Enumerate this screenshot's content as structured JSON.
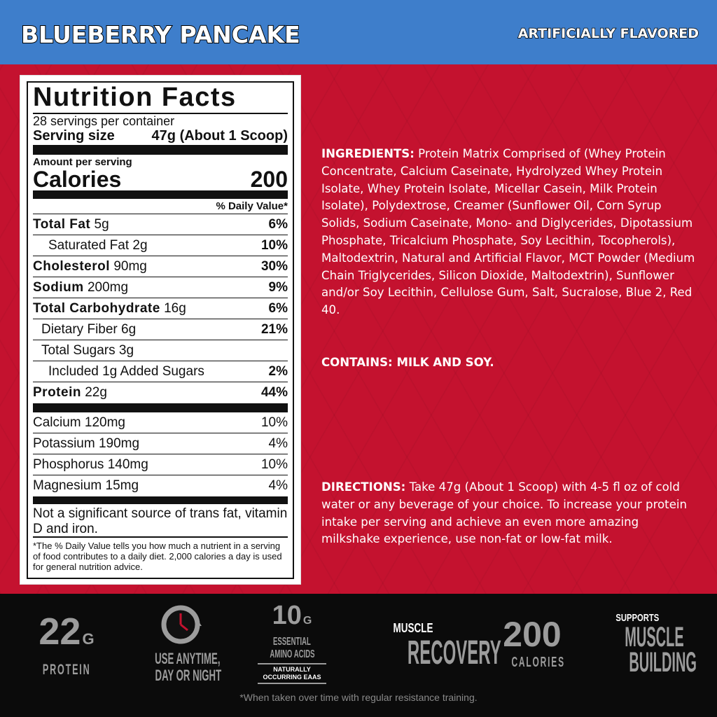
{
  "header": {
    "flavor": "BLUEBERRY PANCAKE",
    "flavor_note": "ARTIFICIALLY FLAVORED"
  },
  "colors": {
    "header_blue": "#3e7ecb",
    "panel_red": "#c4122f",
    "footer_black": "#0b0b0b"
  },
  "nutrition": {
    "title": "Nutrition Facts",
    "servings": "28 servings per container",
    "serving_size_label": "Serving size",
    "serving_size_value": "47g (About 1 Scoop)",
    "amount_per_serving": "Amount per serving",
    "calories_label": "Calories",
    "calories_value": "200",
    "dv_header": "% Daily Value*",
    "rows": [
      {
        "name": "Total Fat",
        "amount": "5g",
        "dv": "6%"
      },
      {
        "name": "Saturated Fat",
        "amount": "2g",
        "dv": "10%"
      },
      {
        "name": "Cholesterol",
        "amount": "90mg",
        "dv": "30%"
      },
      {
        "name": "Sodium",
        "amount": "200mg",
        "dv": "9%"
      },
      {
        "name": "Total Carbohydrate",
        "amount": "16g",
        "dv": "6%"
      },
      {
        "name": "Dietary Fiber",
        "amount": "6g",
        "dv": "21%"
      },
      {
        "name": "Total Sugars",
        "amount": "3g",
        "dv": ""
      },
      {
        "name": "Included 1g Added Sugars",
        "amount": "",
        "dv": "2%"
      },
      {
        "name": "Protein",
        "amount": "22g",
        "dv": "44%"
      }
    ],
    "minerals": [
      {
        "name": "Calcium",
        "amount": "120mg",
        "dv": "10%"
      },
      {
        "name": "Potassium",
        "amount": "190mg",
        "dv": "4%"
      },
      {
        "name": "Phosphorus",
        "amount": "140mg",
        "dv": "10%"
      },
      {
        "name": "Magnesium",
        "amount": "15mg",
        "dv": "4%"
      }
    ],
    "not_significant": "Not a significant source of trans fat, vitamin D and iron.",
    "footnote": "*The % Daily Value tells you how much a nutrient in a serving of food contributes to a daily diet. 2,000 calories a day is used for general nutrition advice."
  },
  "ingredients": {
    "label": "INGREDIENTS:",
    "text": " Protein Matrix Comprised of (Whey Protein Concentrate, Calcium Caseinate, Hydrolyzed Whey Protein Isolate, Whey Protein Isolate, Micellar Casein, Milk Protein Isolate), Polydextrose, Creamer (Sunflower Oil, Corn Syrup Solids, Sodium Caseinate, Mono- and Diglycerides, Dipotassium Phosphate, Tricalcium Phosphate, Soy Lecithin, Tocopherols), Maltodextrin, Natural and Artificial Flavor, MCT Powder (Medium Chain Triglycerides, Silicon Dioxide, Maltodextrin), Sunflower and/or Soy Lecithin, Cellulose Gum, Salt, Sucralose, Blue 2, Red 40."
  },
  "contains": "CONTAINS: MILK AND SOY.",
  "directions": {
    "label": "DIRECTIONS:",
    "text": " Take 47g (About 1 Scoop) with 4-5 fl oz of cold water or any beverage of your choice. To increase your protein intake per serving and achieve an even more amazing milkshake experience, use non-fat or low-fat milk."
  },
  "badges": {
    "protein_value": "22",
    "protein_unit": "G",
    "protein_label": "PROTEIN",
    "anytime_line1": "USE ANYTIME,",
    "anytime_line2": "DAY OR NIGHT",
    "eaa_value": "10",
    "eaa_unit": "G",
    "eaa_line1": "ESSENTIAL",
    "eaa_line2": "AMINO ACIDS",
    "eaa_note1": "NATURALLY",
    "eaa_note2": "OCCURRING EAAS",
    "recovery_top": "MUSCLE",
    "recovery_main": "RECOVERY",
    "calories_value": "200",
    "calories_label": "CALORIES",
    "building_top": "SUPPORTS",
    "building_line1": "MUSCLE",
    "building_line2": "BUILDING",
    "building_mark": "*"
  },
  "disclaimer": "*When taken over time with regular resistance training."
}
